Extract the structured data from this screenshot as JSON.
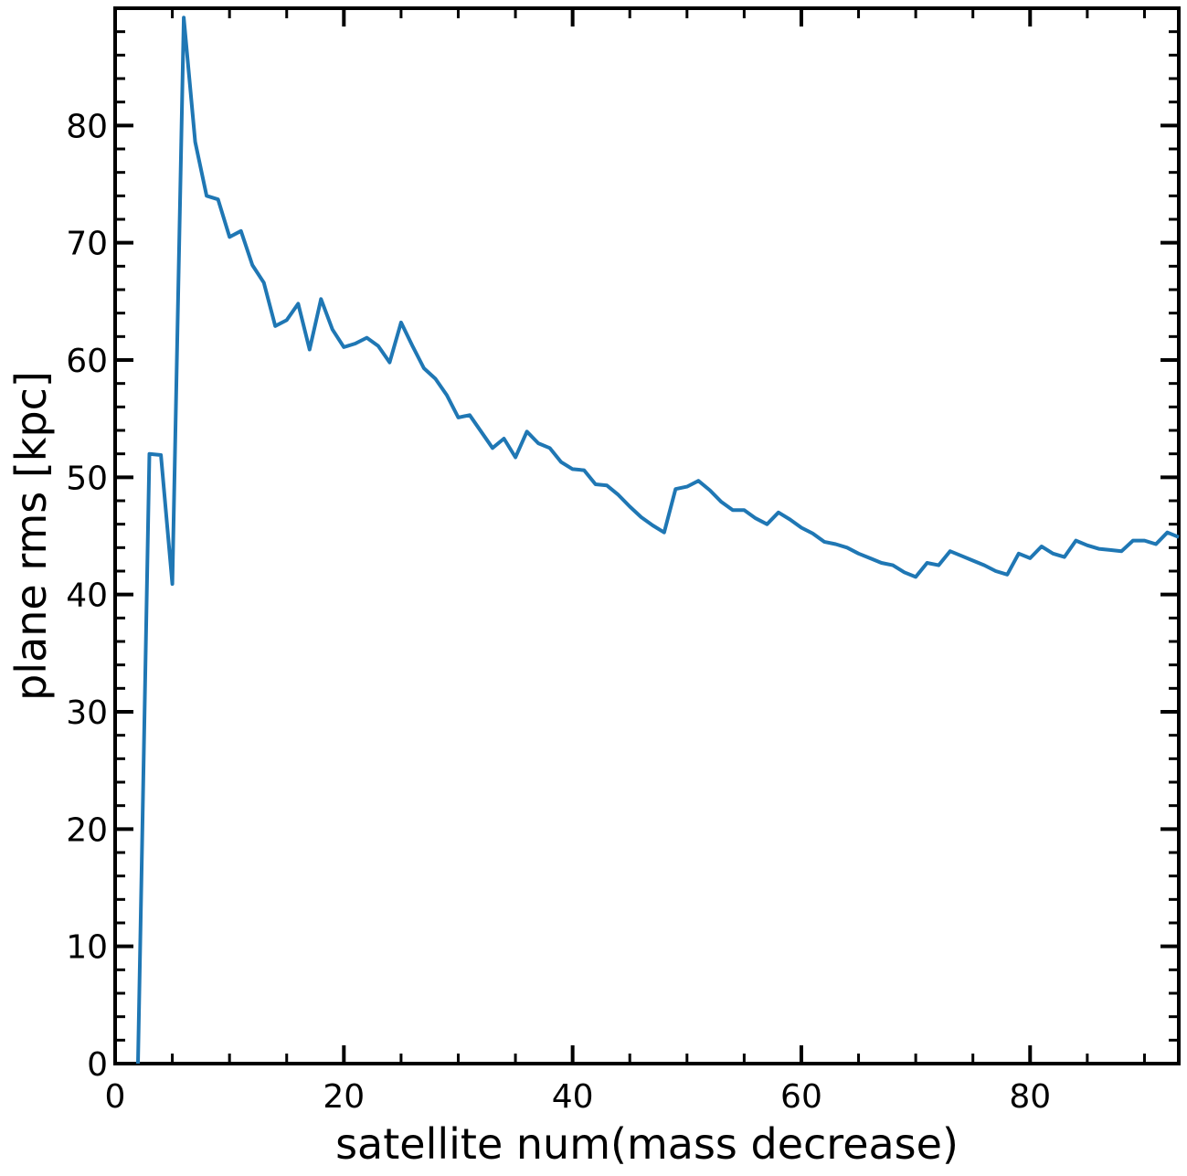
{
  "chart_data": {
    "type": "line",
    "title": "",
    "xlabel": "satellite num(mass decrease)",
    "ylabel": "plane rms [kpc]",
    "xlim": [
      0,
      93
    ],
    "ylim": [
      0,
      90
    ],
    "x_ticks": [
      0,
      20,
      40,
      60,
      80
    ],
    "y_ticks": [
      0,
      10,
      20,
      30,
      40,
      50,
      60,
      70,
      80
    ],
    "x_minor_step": 5,
    "y_minor_step": 2,
    "grid": false,
    "line_color": "#1f77b4",
    "series": [
      {
        "x": [
          2,
          3,
          4,
          5,
          6,
          7,
          8,
          9,
          10,
          11,
          12,
          13,
          14,
          15,
          16,
          17,
          18,
          19,
          20,
          21,
          22,
          23,
          24,
          25,
          26,
          27,
          28,
          29,
          30,
          31,
          32,
          33,
          34,
          35,
          36,
          37,
          38,
          39,
          40,
          41,
          42,
          43,
          44,
          45,
          46,
          47,
          48,
          49,
          50,
          51,
          52,
          53,
          54,
          55,
          56,
          57,
          58,
          59,
          60,
          61,
          62,
          63,
          64,
          65,
          66,
          67,
          68,
          69,
          70,
          71,
          72,
          73,
          74,
          75,
          76,
          77,
          78,
          79,
          80,
          81,
          82,
          83,
          84,
          85,
          86,
          87,
          88,
          89,
          90,
          91,
          92,
          93
        ],
        "values": [
          0,
          52.0,
          51.9,
          40.9,
          89.2,
          78.6,
          74.0,
          73.7,
          70.5,
          71.0,
          68.1,
          66.6,
          62.9,
          63.4,
          64.8,
          60.9,
          65.2,
          62.6,
          61.1,
          61.4,
          61.9,
          61.2,
          59.8,
          63.2,
          61.2,
          59.3,
          58.4,
          57.0,
          55.1,
          55.3,
          53.9,
          52.5,
          53.3,
          51.7,
          53.9,
          52.9,
          52.5,
          51.3,
          50.7,
          50.6,
          49.4,
          49.3,
          48.5,
          47.5,
          46.6,
          45.9,
          45.3,
          49.0,
          49.2,
          49.7,
          48.9,
          47.9,
          47.2,
          47.2,
          46.5,
          46.0,
          47.0,
          46.4,
          45.7,
          45.2,
          44.5,
          44.3,
          44.0,
          43.5,
          43.1,
          42.7,
          42.5,
          41.9,
          41.5,
          42.7,
          42.5,
          43.7,
          43.3,
          42.9,
          42.5,
          42.0,
          41.7,
          43.5,
          43.1,
          44.1,
          43.5,
          43.2,
          44.6,
          44.2,
          43.9,
          43.8,
          43.7,
          44.6,
          44.6,
          44.3,
          45.3,
          44.9
        ]
      }
    ]
  }
}
